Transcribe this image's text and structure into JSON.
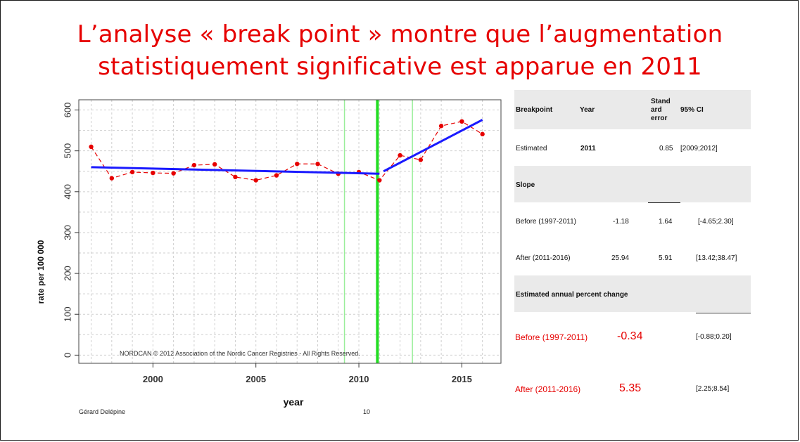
{
  "slide": {
    "title_line1": "L’analyse « break point » montre que l’augmentation",
    "title_line2": "statistiquement significative est apparue en  2011",
    "footer_author": "Gérard Delépine",
    "page_number": "10"
  },
  "chart_data": {
    "type": "line",
    "xlabel": "year",
    "ylabel": "rate per 100 000",
    "xlim": [
      1996.4,
      2016.9
    ],
    "ylim": [
      -20,
      625
    ],
    "x_ticks": [
      2000,
      2005,
      2010,
      2015
    ],
    "y_ticks": [
      0,
      100,
      200,
      300,
      400,
      500,
      600
    ],
    "grid": true,
    "annotation": "NORDCAN © 2012 Association of the Nordic Cancer Registries - All Rights Reserved.",
    "series": [
      {
        "style": "dashed-points",
        "color": "#e60000",
        "x": [
          1997,
          1998,
          1999,
          2000,
          2001,
          2002,
          2003,
          2004,
          2005,
          2006,
          2007,
          2008,
          2009,
          2010,
          2011,
          2012,
          2013,
          2014,
          2015,
          2016
        ],
        "values": [
          510,
          433,
          448,
          446,
          445,
          465,
          467,
          436,
          428,
          440,
          468,
          468,
          444,
          448,
          428,
          489,
          478,
          561,
          572,
          541
        ]
      },
      {
        "style": "fit",
        "color": "#1a1aff",
        "x": [
          1997,
          2011
        ],
        "values": [
          460,
          444
        ]
      },
      {
        "style": "fit",
        "color": "#1a1aff",
        "x": [
          2011.2,
          2016
        ],
        "values": [
          450,
          576
        ]
      }
    ],
    "vlines": [
      {
        "x": 2010.9,
        "color": "#22dd22",
        "kind": "breakpoint"
      },
      {
        "x": 2009.3,
        "color": "#99ee99",
        "kind": "ci"
      },
      {
        "x": 2012.6,
        "color": "#99ee99",
        "kind": "ci"
      }
    ]
  },
  "table": {
    "header": {
      "breakpoint": "Breakpoint",
      "year": "Year",
      "stderr_1": "Stand",
      "stderr_2": "ard",
      "stderr_3": "error",
      "ci": "95% CI"
    },
    "estimated": {
      "label": "Estimated",
      "year": "2011",
      "se": "0.85",
      "ci": "[2009;2012]"
    },
    "slope_header": "Slope",
    "slope_before": {
      "label": "Before (1997-2011)",
      "value": "-1.18",
      "se": "1.64",
      "ci": "[-4.65;2.30]"
    },
    "slope_after": {
      "label": "After (2011-2016)",
      "value": "25.94",
      "se": "5.91",
      "ci": "[13.42;38.47]"
    },
    "eapc_header": "Estimated annual percent change",
    "eapc_before": {
      "label": "Before (1997-2011)",
      "value": "-0.34",
      "ci": "[-0.88;0.20]"
    },
    "eapc_after": {
      "label": "After (2011-2016)",
      "value": "5.35",
      "ci": "[2.25;8.54]"
    }
  }
}
